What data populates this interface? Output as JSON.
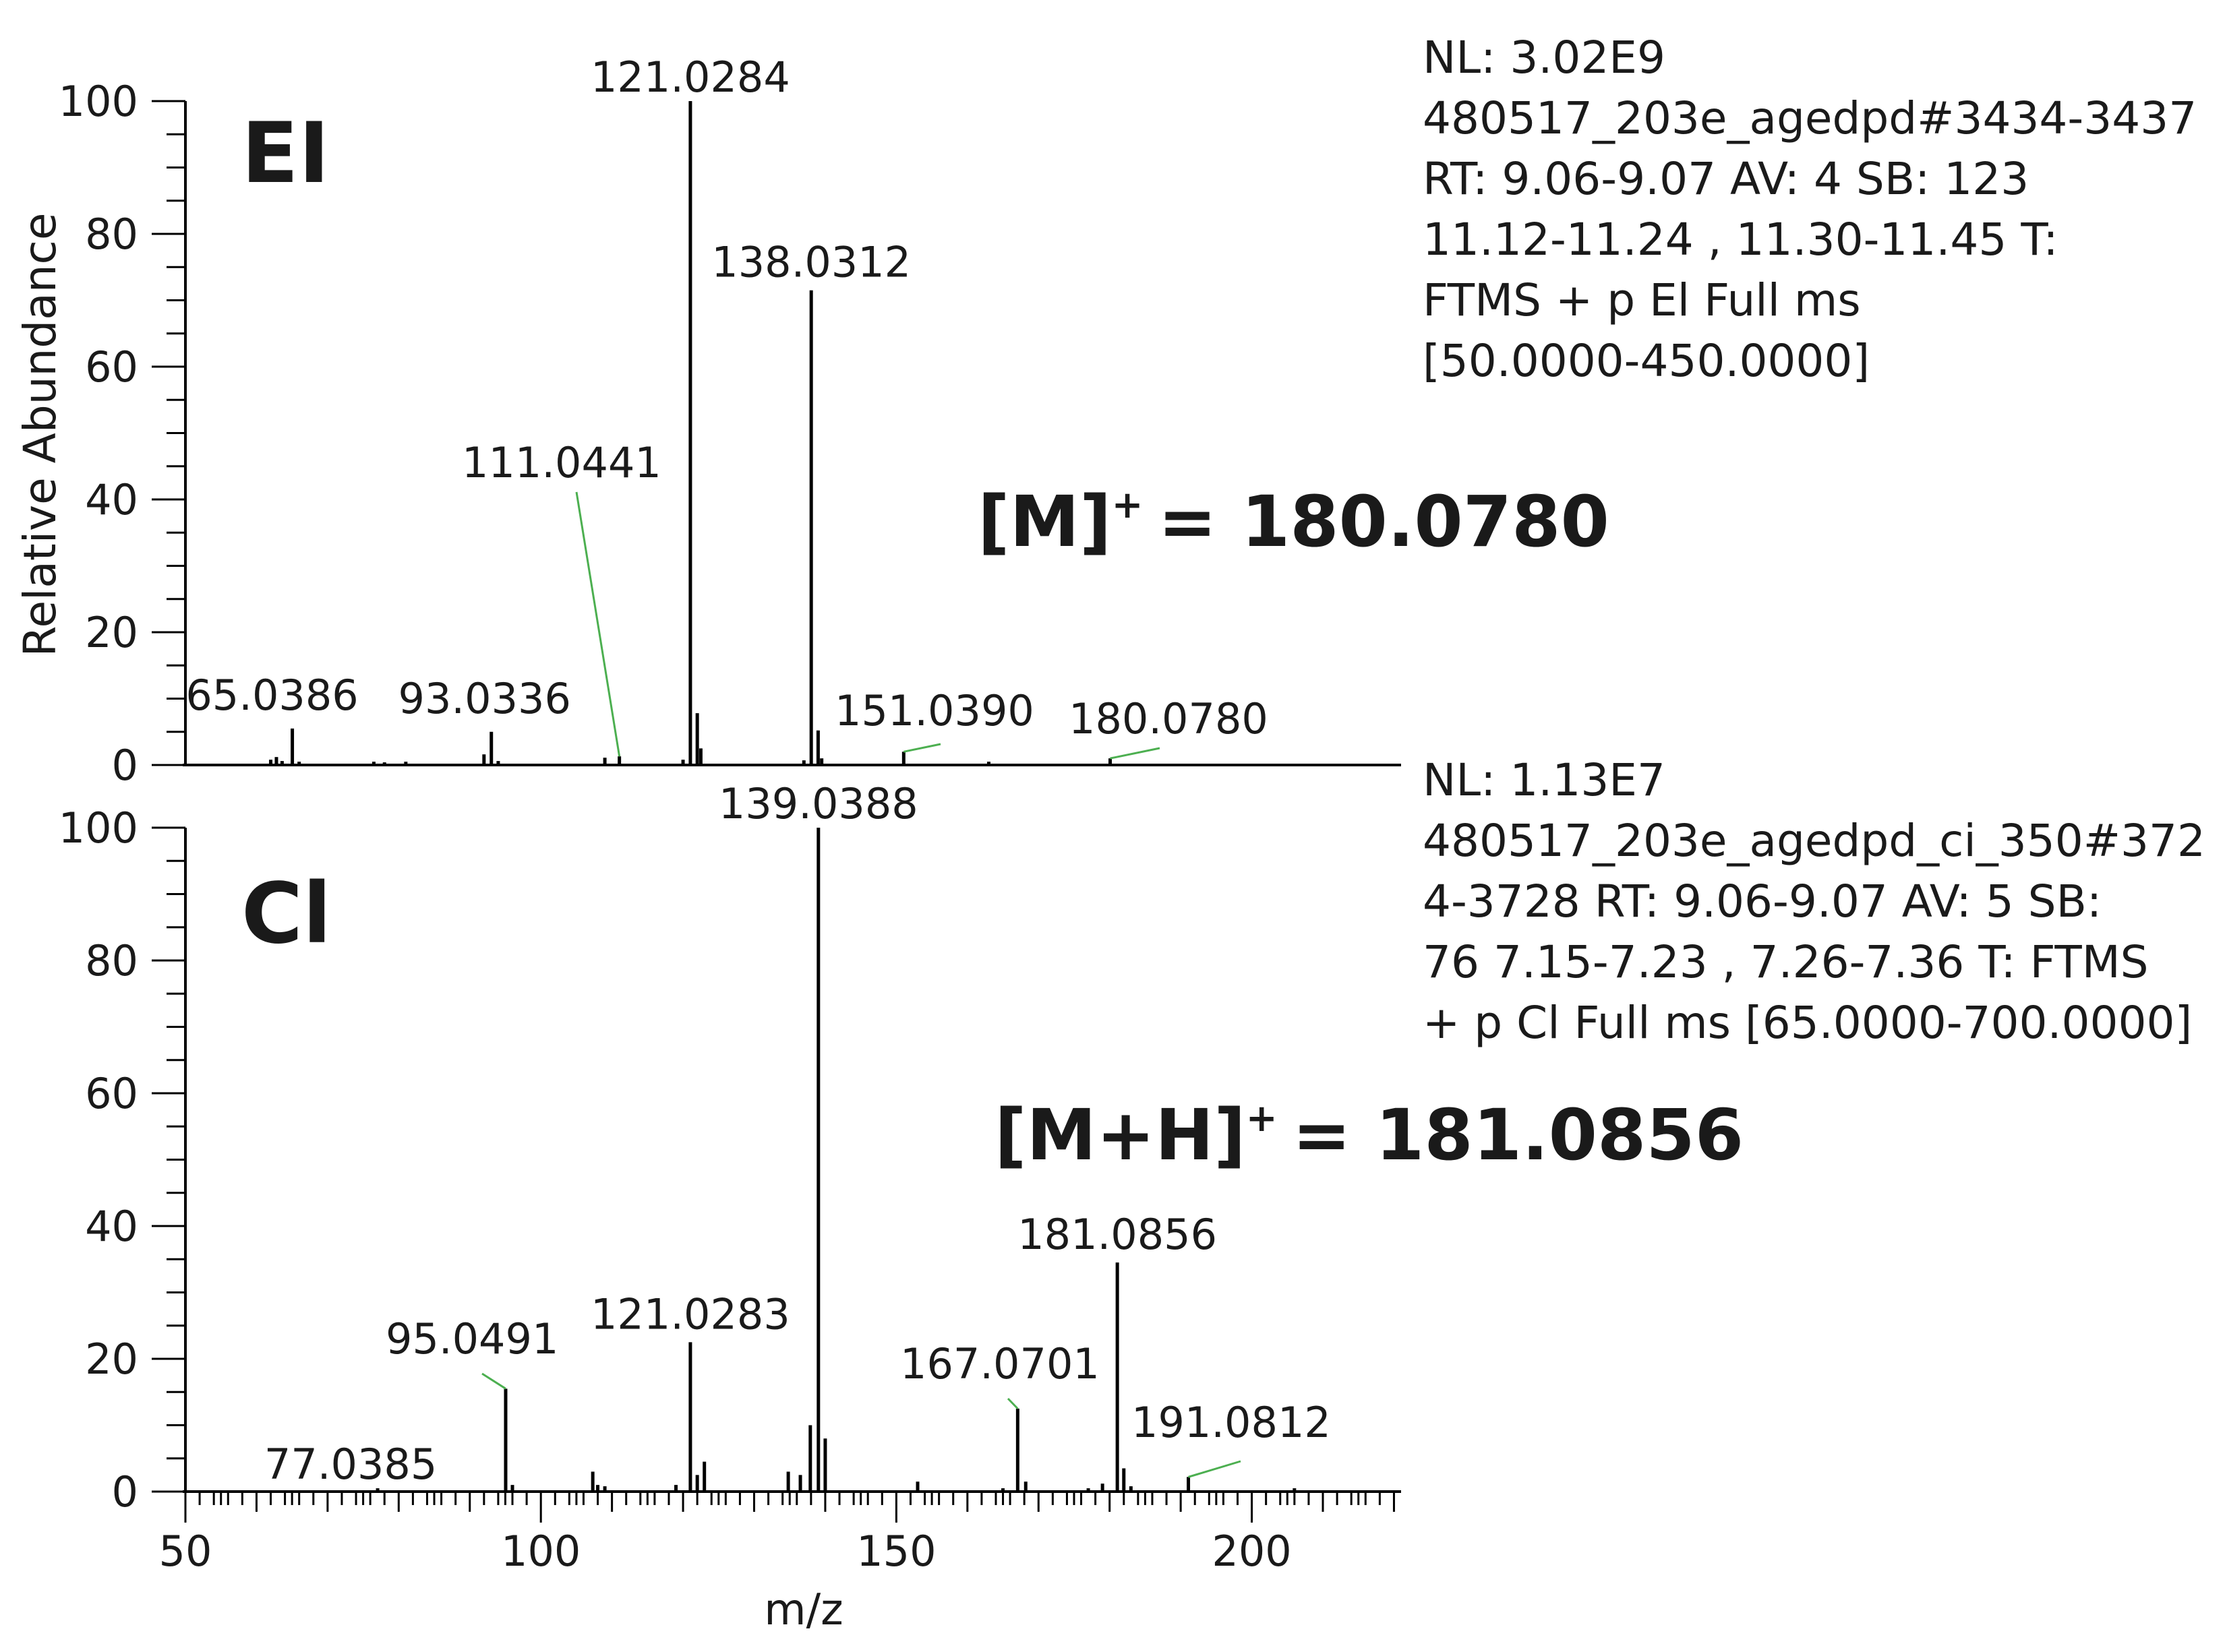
{
  "x_axis_label": "m/z",
  "y_axis_label": "Relative Abundance",
  "x_ticks": [
    50,
    100,
    150,
    200
  ],
  "y_ticks": [
    0,
    20,
    40,
    60,
    80,
    100
  ],
  "panels": [
    {
      "tag": "EI",
      "molecular_ion_label": "[M]",
      "molecular_ion_value": "= 180.0780",
      "info_lines": [
        "NL: 3.02E9",
        "480517_203e_agedpd#3434-3437",
        "RT: 9.06-9.07 AV: 4 SB: 123",
        "11.12-11.24 , 11.30-11.45 T:",
        "FTMS + p El Full ms",
        "[50.0000-450.0000]"
      ]
    },
    {
      "tag": "Cl",
      "molecular_ion_label": "[M+H]",
      "molecular_ion_value": "= 181.0856",
      "info_lines": [
        "NL: 1.13E7",
        "480517_203e_agedpd_ci_350#372",
        "4-3728 RT: 9.06-9.07 AV: 5 SB:",
        "76 7.15-7.23 , 7.26-7.36 T: FTMS",
        "+ p Cl Full ms [65.0000-700.0000]"
      ]
    }
  ],
  "colors": {
    "peaks": "#000000",
    "label_leader": "#4caf50",
    "text": "#1a1a1a"
  },
  "chart_data": [
    {
      "type": "bar",
      "title": "El",
      "xlabel": "",
      "ylabel": "Relative Abundance",
      "xlim": [
        50,
        221
      ],
      "ylim": [
        0,
        100
      ],
      "peaks": [
        {
          "x": 62.0,
          "y": 0.8
        },
        {
          "x": 62.8,
          "y": 1.2
        },
        {
          "x": 63.6,
          "y": 0.6
        },
        {
          "x": 65.0386,
          "y": 5.5,
          "label": "65.0386"
        },
        {
          "x": 66.0,
          "y": 0.5
        },
        {
          "x": 76.5,
          "y": 0.5
        },
        {
          "x": 78.0,
          "y": 0.4
        },
        {
          "x": 81.0,
          "y": 0.5
        },
        {
          "x": 92.0,
          "y": 1.6
        },
        {
          "x": 93.0336,
          "y": 5.0,
          "label": "93.0336"
        },
        {
          "x": 94.0,
          "y": 0.6
        },
        {
          "x": 109.0,
          "y": 1.1
        },
        {
          "x": 111.0441,
          "y": 1.3,
          "label": "111.0441",
          "leader": true
        },
        {
          "x": 120.0,
          "y": 0.8
        },
        {
          "x": 121.0284,
          "y": 100,
          "label": "121.0284"
        },
        {
          "x": 122.0,
          "y": 7.8
        },
        {
          "x": 122.5,
          "y": 2.5
        },
        {
          "x": 137.0,
          "y": 0.7
        },
        {
          "x": 138.0312,
          "y": 71.5,
          "label": "138.0312"
        },
        {
          "x": 139.0,
          "y": 5.2
        },
        {
          "x": 139.5,
          "y": 1.0
        },
        {
          "x": 151.039,
          "y": 2.0,
          "label": "151.0390",
          "leader": true
        },
        {
          "x": 163.0,
          "y": 0.5
        },
        {
          "x": 180.078,
          "y": 1.0,
          "label": "180.0780",
          "leader": true
        }
      ]
    },
    {
      "type": "bar",
      "title": "Cl",
      "xlabel": "m/z",
      "ylabel": "",
      "xlim": [
        50,
        221
      ],
      "ylim": [
        0,
        100
      ],
      "peaks": [
        {
          "x": 77.0385,
          "y": 0.5,
          "label": "77.0385"
        },
        {
          "x": 95.0491,
          "y": 15.5,
          "label": "95.0491",
          "leader": true
        },
        {
          "x": 96.0,
          "y": 1.0
        },
        {
          "x": 107.3,
          "y": 3.0
        },
        {
          "x": 108.0,
          "y": 1.0
        },
        {
          "x": 109.0,
          "y": 0.8
        },
        {
          "x": 119.0,
          "y": 1.0
        },
        {
          "x": 121.0283,
          "y": 22.5,
          "label": "121.0283"
        },
        {
          "x": 122.0,
          "y": 2.5
        },
        {
          "x": 123.0,
          "y": 4.5
        },
        {
          "x": 134.8,
          "y": 3.0
        },
        {
          "x": 136.5,
          "y": 2.5
        },
        {
          "x": 137.9,
          "y": 10.0
        },
        {
          "x": 139.0388,
          "y": 100,
          "label": "139.0388"
        },
        {
          "x": 140.0,
          "y": 8.0
        },
        {
          "x": 153.0,
          "y": 1.5
        },
        {
          "x": 165.0,
          "y": 0.5
        },
        {
          "x": 167.0701,
          "y": 12.5,
          "label": "167.0701",
          "leader": true
        },
        {
          "x": 168.2,
          "y": 1.5
        },
        {
          "x": 177.0,
          "y": 0.5
        },
        {
          "x": 179.0,
          "y": 1.2
        },
        {
          "x": 181.0856,
          "y": 34.5,
          "label": "181.0856"
        },
        {
          "x": 182.0,
          "y": 3.5
        },
        {
          "x": 183.0,
          "y": 0.8
        },
        {
          "x": 191.0812,
          "y": 2.2,
          "label": "191.0812",
          "leader": true
        },
        {
          "x": 206.0,
          "y": 0.5
        }
      ]
    }
  ]
}
